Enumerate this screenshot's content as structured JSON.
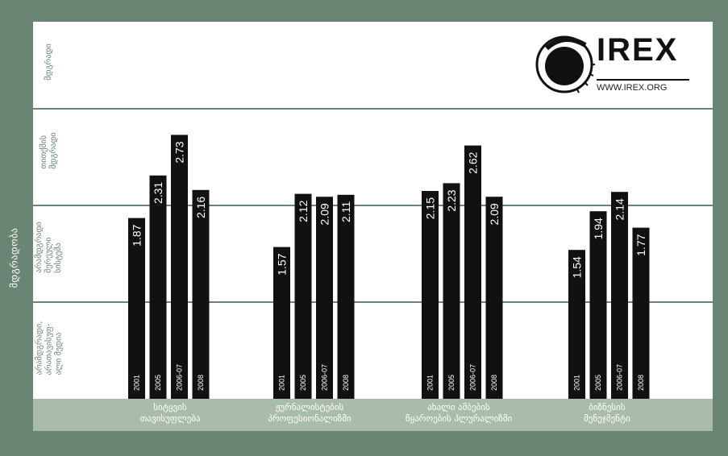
{
  "colors": {
    "background": "#6b8574",
    "panel": "#ffffff",
    "band": "#a9bba9",
    "bar": "#111111",
    "gridline": "#6b8574",
    "bar_text": "#ffffff"
  },
  "y_axis_title": "მდგრადობა",
  "levels": [
    {
      "label": "მდგრადი"
    },
    {
      "label": "თითქმის\nმდგრადი"
    },
    {
      "label": "არამდგრადი\nშერეული\nსისტემა"
    },
    {
      "label": "არამდგრადი,\nარათავისუფ-\nალი მედია"
    }
  ],
  "logo": {
    "name": "IREX",
    "url": "WWW.IREX.ORG",
    "icon": "irex-swirl-logo-icon"
  },
  "chart_data": {
    "type": "bar",
    "ylim": [
      0,
      4
    ],
    "grid": true,
    "series": [
      {
        "name": "2001",
        "values": [
          1.87,
          1.57,
          2.15,
          1.54
        ]
      },
      {
        "name": "2005",
        "values": [
          2.31,
          2.12,
          2.23,
          1.94
        ]
      },
      {
        "name": "2006-07",
        "values": [
          2.73,
          2.09,
          2.62,
          2.14
        ]
      },
      {
        "name": "2008",
        "values": [
          2.16,
          2.11,
          2.09,
          1.77
        ]
      }
    ],
    "bar_year_labels": [
      [
        "2001",
        "2005",
        "2006-07",
        "2008"
      ],
      [
        "2001",
        "2005",
        "2006-07",
        "2008"
      ],
      [
        "2001",
        "2005",
        "2006-07",
        "2008"
      ],
      [
        "2001",
        "2005",
        "2006-07",
        "2008"
      ]
    ],
    "categories": [
      "სიტყვის\nთავისუფლება",
      "ჟურნალისტების\nპროფესიონალიზმი",
      "ახალი ამბების\nწყაროების პლურალიზმი",
      "ბიზნესის\nმენეჯმენტი"
    ]
  }
}
